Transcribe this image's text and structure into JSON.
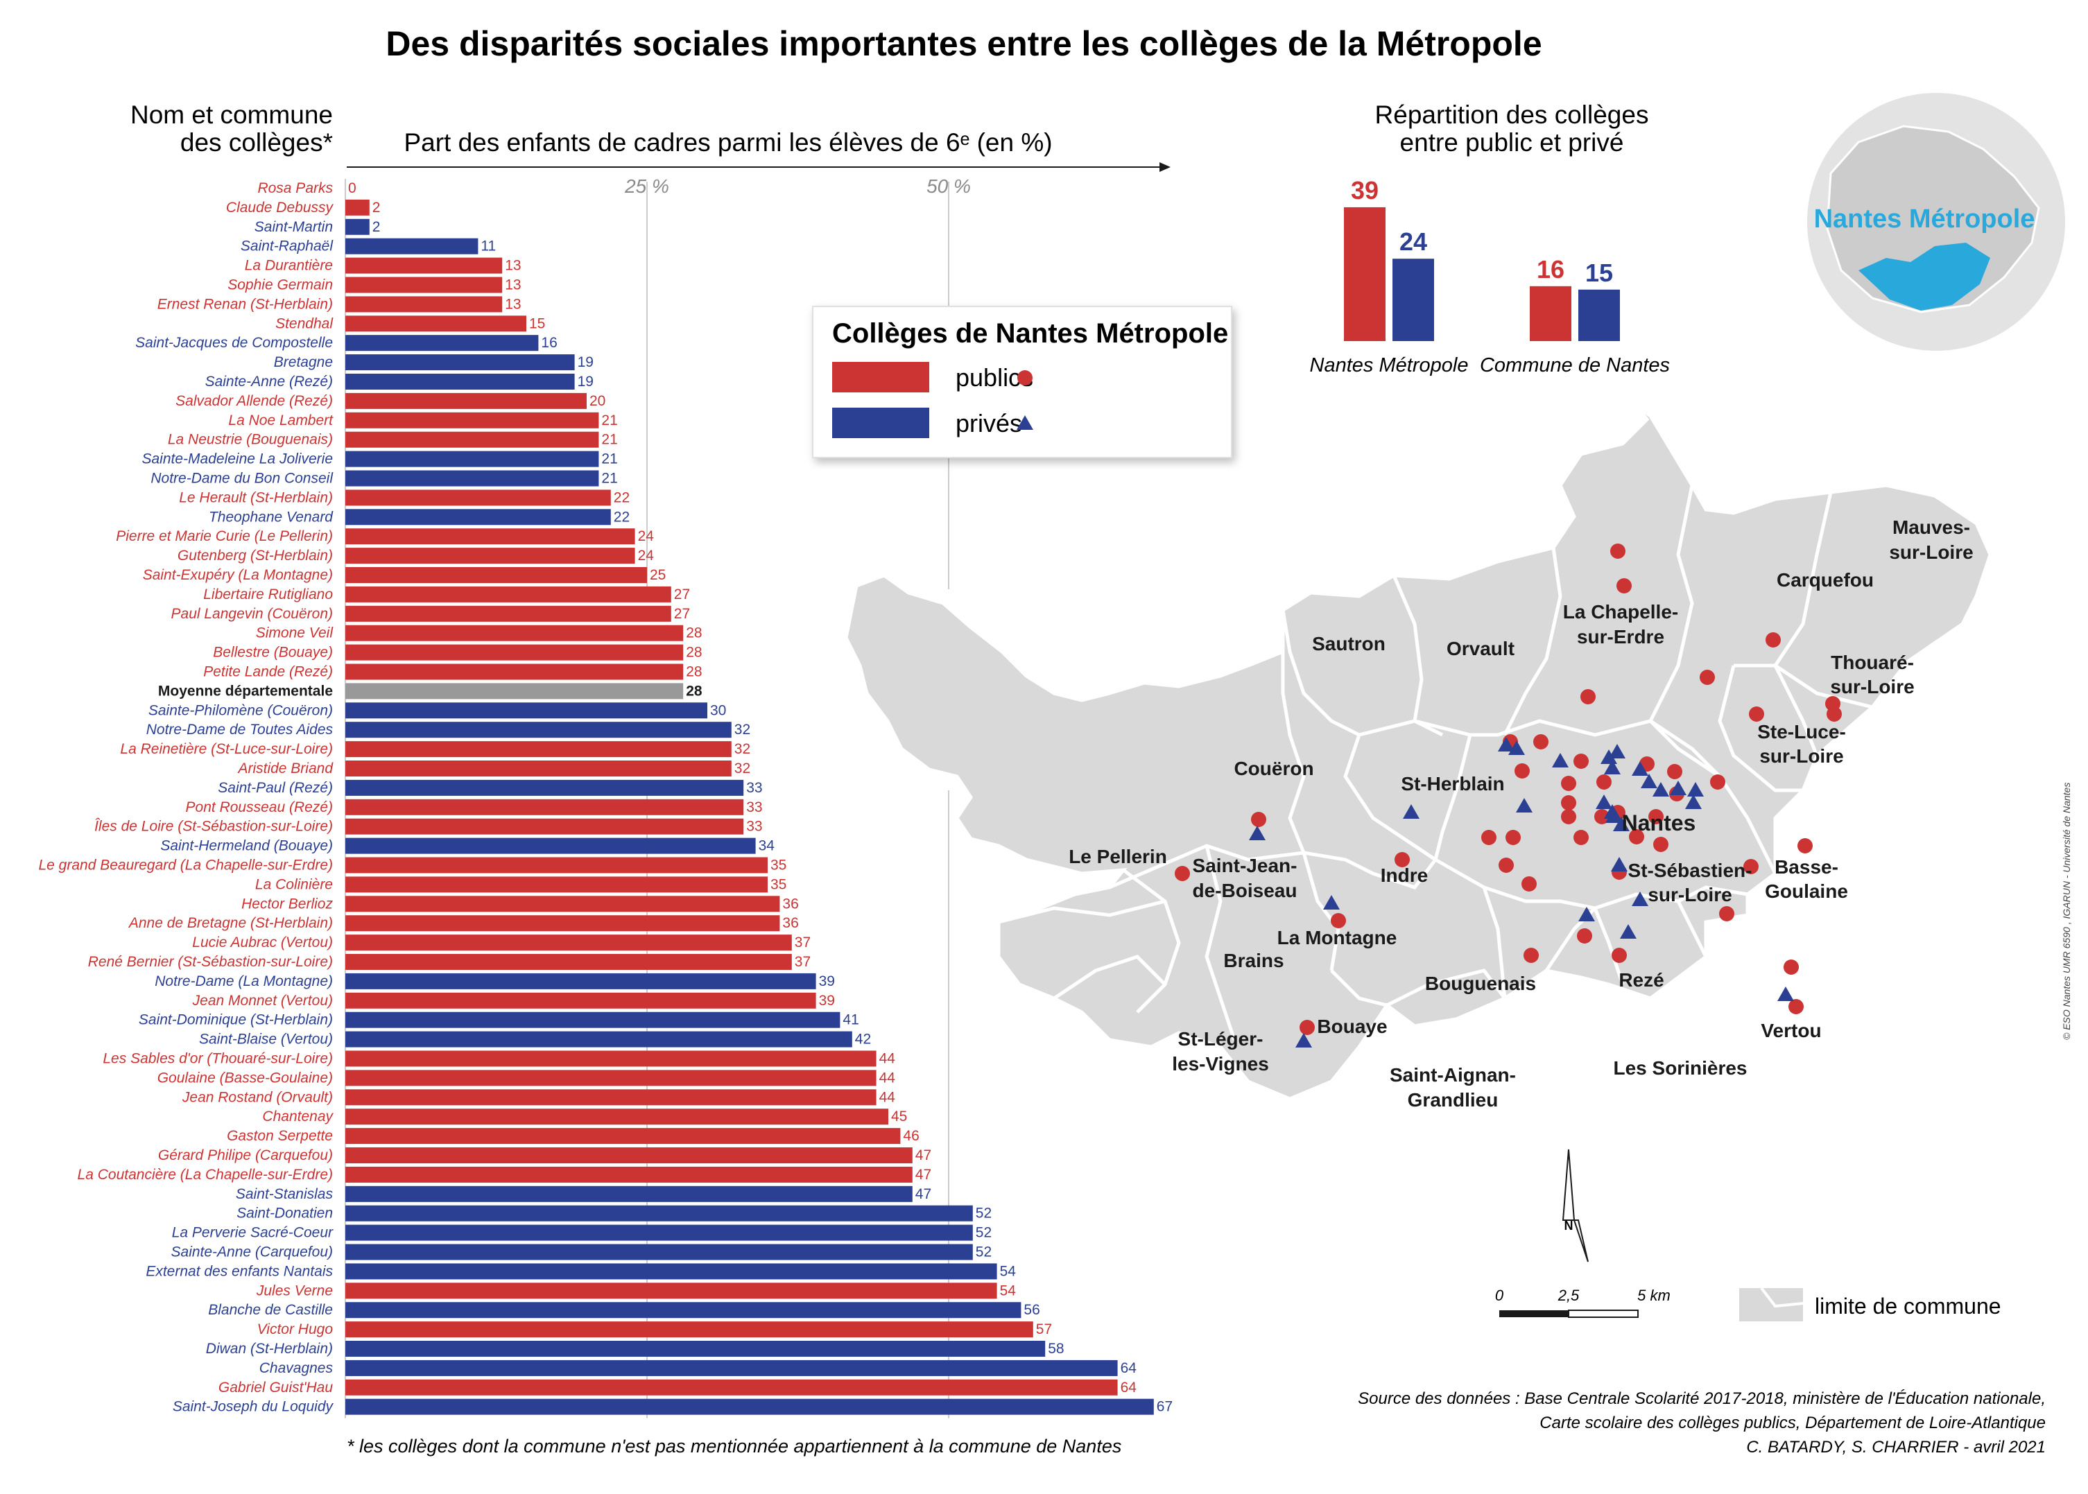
{
  "title": "Des disparités sociales importantes entre les collèges de la Métropole",
  "colors": {
    "public": "#cc3333",
    "prive": "#2b3f93",
    "moyenne": "#999999",
    "map_fill": "#d9d9d9",
    "map_stroke": "#ffffff",
    "metro_highlight": "#29a8dc"
  },
  "chart_data": [
    {
      "type": "bar",
      "orientation": "horizontal",
      "title": "Part des enfants de cadres parmi les élèves de 6ᵉ (en %)",
      "category_header": "Nom et commune des collèges*",
      "xlim": [
        0,
        67
      ],
      "xticks": [
        {
          "value": 25,
          "label": "25 %"
        },
        {
          "value": 50,
          "label": "50 %"
        }
      ],
      "grid": true,
      "rows": [
        {
          "name": "Rosa Parks",
          "value": 0,
          "sector": "public"
        },
        {
          "name": "Claude Debussy",
          "value": 2,
          "sector": "public"
        },
        {
          "name": "Saint-Martin",
          "value": 2,
          "sector": "prive"
        },
        {
          "name": "Saint-Raphaël",
          "value": 11,
          "sector": "prive"
        },
        {
          "name": "La Durantière",
          "value": 13,
          "sector": "public"
        },
        {
          "name": "Sophie Germain",
          "value": 13,
          "sector": "public"
        },
        {
          "name": "Ernest Renan (St-Herblain)",
          "value": 13,
          "sector": "public"
        },
        {
          "name": "Stendhal",
          "value": 15,
          "sector": "public"
        },
        {
          "name": "Saint-Jacques de Compostelle",
          "value": 16,
          "sector": "prive"
        },
        {
          "name": "Bretagne",
          "value": 19,
          "sector": "prive"
        },
        {
          "name": "Sainte-Anne (Rezé)",
          "value": 19,
          "sector": "prive"
        },
        {
          "name": "Salvador Allende (Rezé)",
          "value": 20,
          "sector": "public"
        },
        {
          "name": "La Noe Lambert",
          "value": 21,
          "sector": "public"
        },
        {
          "name": "La Neustrie (Bouguenais)",
          "value": 21,
          "sector": "public"
        },
        {
          "name": "Sainte-Madeleine La Joliverie",
          "value": 21,
          "sector": "prive"
        },
        {
          "name": "Notre-Dame du Bon Conseil",
          "value": 21,
          "sector": "prive"
        },
        {
          "name": "Le Herault (St-Herblain)",
          "value": 22,
          "sector": "public"
        },
        {
          "name": "Theophane Venard",
          "value": 22,
          "sector": "prive"
        },
        {
          "name": "Pierre et Marie Curie (Le Pellerin)",
          "value": 24,
          "sector": "public"
        },
        {
          "name": "Gutenberg (St-Herblain)",
          "value": 24,
          "sector": "public"
        },
        {
          "name": "Saint-Exupéry (La Montagne)",
          "value": 25,
          "sector": "public"
        },
        {
          "name": "Libertaire Rutigliano",
          "value": 27,
          "sector": "public"
        },
        {
          "name": "Paul Langevin (Couëron)",
          "value": 27,
          "sector": "public"
        },
        {
          "name": "Simone Veil",
          "value": 28,
          "sector": "public"
        },
        {
          "name": "Bellestre (Bouaye)",
          "value": 28,
          "sector": "public"
        },
        {
          "name": "Petite Lande (Rezé)",
          "value": 28,
          "sector": "public"
        },
        {
          "name": "Moyenne départementale",
          "value": 28,
          "sector": "moyenne"
        },
        {
          "name": "Sainte-Philomène (Couëron)",
          "value": 30,
          "sector": "prive"
        },
        {
          "name": "Notre-Dame de Toutes Aides",
          "value": 32,
          "sector": "prive"
        },
        {
          "name": "La Reinetière (St-Luce-sur-Loire)",
          "value": 32,
          "sector": "public"
        },
        {
          "name": "Aristide Briand",
          "value": 32,
          "sector": "public"
        },
        {
          "name": "Saint-Paul (Rezé)",
          "value": 33,
          "sector": "prive"
        },
        {
          "name": "Pont Rousseau (Rezé)",
          "value": 33,
          "sector": "public"
        },
        {
          "name": "Îles de Loire (St-Sébastion-sur-Loire)",
          "value": 33,
          "sector": "public"
        },
        {
          "name": "Saint-Hermeland (Bouaye)",
          "value": 34,
          "sector": "prive"
        },
        {
          "name": "Le grand Beauregard (La Chapelle-sur-Erdre)",
          "value": 35,
          "sector": "public"
        },
        {
          "name": "La Colinière",
          "value": 35,
          "sector": "public"
        },
        {
          "name": "Hector Berlioz",
          "value": 36,
          "sector": "public"
        },
        {
          "name": "Anne de Bretagne (St-Herblain)",
          "value": 36,
          "sector": "public"
        },
        {
          "name": "Lucie Aubrac (Vertou)",
          "value": 37,
          "sector": "public"
        },
        {
          "name": "René Bernier (St-Sébastion-sur-Loire)",
          "value": 37,
          "sector": "public"
        },
        {
          "name": "Notre-Dame (La Montagne)",
          "value": 39,
          "sector": "prive"
        },
        {
          "name": "Jean Monnet (Vertou)",
          "value": 39,
          "sector": "public"
        },
        {
          "name": "Saint-Dominique (St-Herblain)",
          "value": 41,
          "sector": "prive"
        },
        {
          "name": "Saint-Blaise (Vertou)",
          "value": 42,
          "sector": "prive"
        },
        {
          "name": "Les Sables d'or (Thouaré-sur-Loire)",
          "value": 44,
          "sector": "public"
        },
        {
          "name": "Goulaine (Basse-Goulaine)",
          "value": 44,
          "sector": "public"
        },
        {
          "name": "Jean Rostand (Orvault)",
          "value": 44,
          "sector": "public"
        },
        {
          "name": "Chantenay",
          "value": 45,
          "sector": "public"
        },
        {
          "name": "Gaston Serpette",
          "value": 46,
          "sector": "public"
        },
        {
          "name": "Gérard Philipe (Carquefou)",
          "value": 47,
          "sector": "public"
        },
        {
          "name": "La Coutancière (La Chapelle-sur-Erdre)",
          "value": 47,
          "sector": "public"
        },
        {
          "name": "Saint-Stanislas",
          "value": 47,
          "sector": "prive"
        },
        {
          "name": "Saint-Donatien",
          "value": 52,
          "sector": "prive"
        },
        {
          "name": "La Perverie Sacré-Coeur",
          "value": 52,
          "sector": "prive"
        },
        {
          "name": "Sainte-Anne (Carquefou)",
          "value": 52,
          "sector": "prive"
        },
        {
          "name": "Externat des enfants Nantais",
          "value": 54,
          "sector": "prive"
        },
        {
          "name": "Jules Verne",
          "value": 54,
          "sector": "public"
        },
        {
          "name": "Blanche de Castille",
          "value": 56,
          "sector": "prive"
        },
        {
          "name": "Victor Hugo",
          "value": 57,
          "sector": "public"
        },
        {
          "name": "Diwan (St-Herblain)",
          "value": 58,
          "sector": "prive"
        },
        {
          "name": "Chavagnes",
          "value": 64,
          "sector": "prive"
        },
        {
          "name": "Gabriel Guist'Hau",
          "value": 64,
          "sector": "public"
        },
        {
          "name": "Saint-Joseph du Loquidy",
          "value": 67,
          "sector": "prive"
        }
      ]
    },
    {
      "type": "bar",
      "title": "Répartition des collèges entre public et privé",
      "categories": [
        "Nantes Métropole",
        "Commune de Nantes"
      ],
      "series": [
        {
          "name": "publics",
          "values": [
            39,
            16
          ]
        },
        {
          "name": "privés",
          "values": [
            24,
            15
          ]
        }
      ]
    }
  ],
  "legend": {
    "title": "Collèges de Nantes Métropole",
    "public_label": "publics",
    "prive_label": "privés"
  },
  "inset": {
    "label": "Nantes Métropole"
  },
  "map": {
    "communes": [
      "Sautron",
      "Orvault",
      "La Chapelle-sur-Erdre",
      "Carquefou",
      "Mauves-sur-Loire",
      "Thouaré-sur-Loire",
      "Ste-Luce-sur-Loire",
      "Couëron",
      "St-Herblain",
      "Nantes",
      "Le Pellerin",
      "Saint-Jean-de-Boiseau",
      "Indre",
      "St-Sébastien-sur-Loire",
      "Basse-Goulaine",
      "La Montagne",
      "Brains",
      "Bouguenais",
      "Rezé",
      "Vertou",
      "St-Léger-les-Vignes",
      "Bouaye",
      "Saint-Aignan-Grandlieu",
      "Les Sorinières"
    ],
    "scale": {
      "labels": [
        "0",
        "2,5",
        "5 km"
      ]
    },
    "north": "N",
    "boundary_label": "limite de commune"
  },
  "footnote": "* les collèges dont la commune n'est pas mentionnée appartiennent à la commune de Nantes",
  "source_lines": [
    "Source des données : Base Centrale Scolarité 2017-2018, ministère de l'Éducation nationale,",
    "Carte scolaire des collèges publics, Département de Loire-Atlantique",
    "C. BATARDY, S. CHARRIER - avril 2021"
  ],
  "credit": "© ESO Nantes UMR 6590 , IGARUN - Université de Nantes"
}
